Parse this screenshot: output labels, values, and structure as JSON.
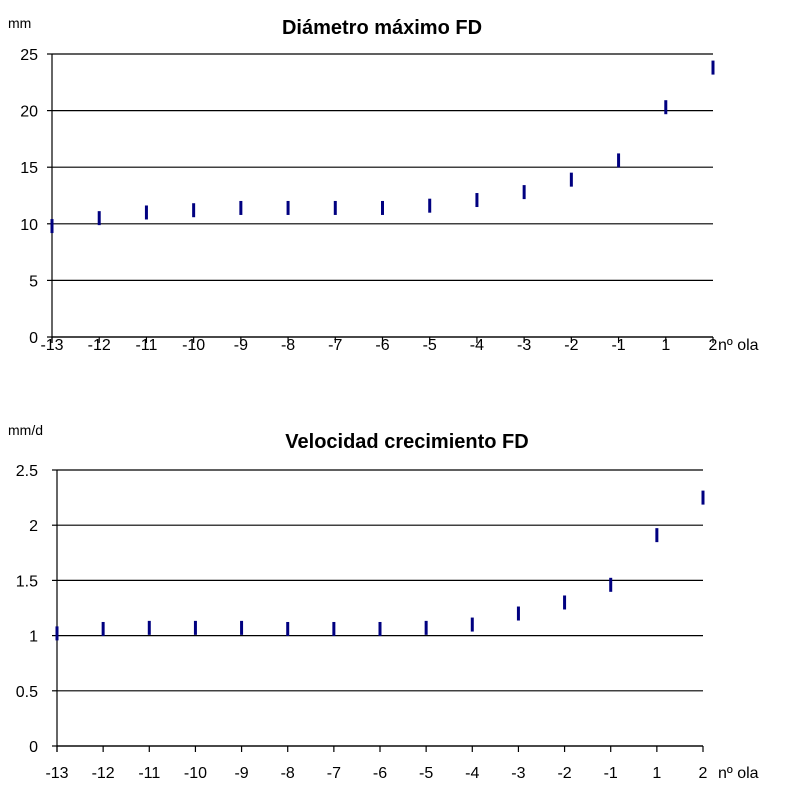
{
  "chart_data": [
    {
      "type": "scatter",
      "title": "Diámetro máximo FD",
      "ylabel": "mm",
      "xlabel": "nº ola",
      "categories": [
        "-13",
        "-12",
        "-11",
        "-10",
        "-9",
        "-8",
        "-7",
        "-6",
        "-5",
        "-4",
        "-3",
        "-2",
        "-1",
        "1",
        "2"
      ],
      "values": [
        9.8,
        10.5,
        11.0,
        11.2,
        11.4,
        11.4,
        11.4,
        11.4,
        11.6,
        12.1,
        12.8,
        13.9,
        15.6,
        20.3,
        23.8
      ],
      "ylim": [
        0,
        25
      ],
      "yticks": [
        "0",
        "5",
        "10",
        "15",
        "20",
        "25"
      ],
      "grid": true
    },
    {
      "type": "scatter",
      "title": "Velocidad crecimiento FD",
      "ylabel": "mm/d",
      "xlabel": "nº ola",
      "categories": [
        "-13",
        "-12",
        "-11",
        "-10",
        "-9",
        "-8",
        "-7",
        "-6",
        "-5",
        "-4",
        "-3",
        "-2",
        "-1",
        "1",
        "2"
      ],
      "values": [
        1.02,
        1.06,
        1.07,
        1.07,
        1.07,
        1.06,
        1.06,
        1.06,
        1.07,
        1.1,
        1.2,
        1.3,
        1.46,
        1.91,
        2.25
      ],
      "ylim": [
        0,
        2.5
      ],
      "yticks": [
        "0",
        "0.5",
        "1",
        "1.5",
        "2",
        "2.5"
      ],
      "grid": true
    }
  ],
  "colors": {
    "marker": "#000080"
  }
}
